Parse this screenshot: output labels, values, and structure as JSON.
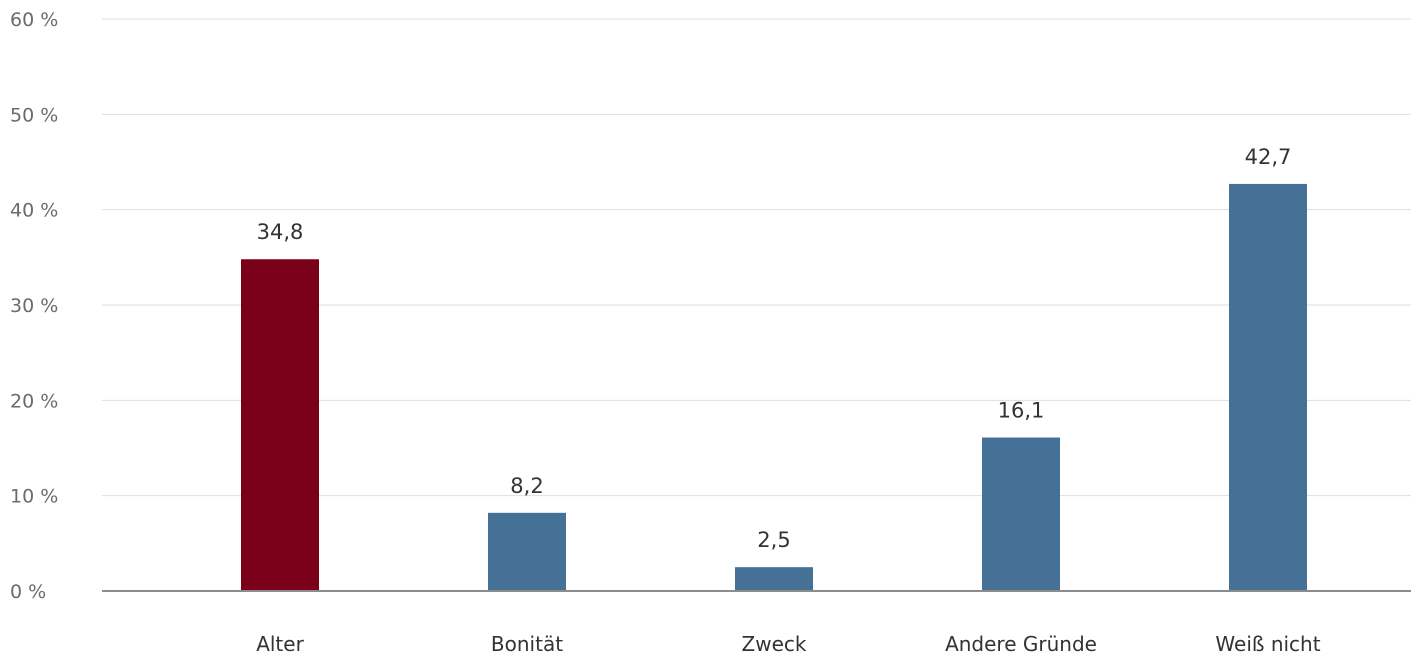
{
  "chart_data": {
    "type": "bar",
    "categories": [
      "Alter",
      "Bonität",
      "Zweck",
      "Andere Gründe",
      "Weiß nicht"
    ],
    "values": [
      34.8,
      8.2,
      2.5,
      16.1,
      42.7
    ],
    "data_labels": [
      "34,8",
      "8,2",
      "2,5",
      "16,1",
      "42,7"
    ],
    "highlight_index": 0,
    "ylim": [
      0,
      60
    ],
    "yticks": [
      0,
      10,
      20,
      30,
      40,
      50,
      60
    ],
    "ytick_labels": [
      "0 %",
      "10 %",
      "20 %",
      "30 %",
      "40 %",
      "50 %",
      "60 %"
    ],
    "grid": true,
    "legend": "none",
    "title": "",
    "xlabel": "",
    "ylabel": "",
    "colors": {
      "highlight": "#7a0019",
      "bar": "#467196",
      "grid": "#dedede",
      "baseline": "#8c8c8c"
    }
  }
}
